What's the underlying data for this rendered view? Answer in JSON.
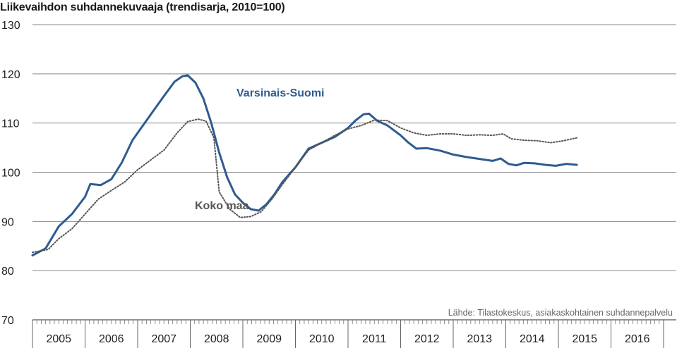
{
  "chart_data": {
    "type": "line",
    "title": "Liikevaihdon suhdannekuvaaja (trendisarja, 2010=100)",
    "source": "Lähde: Tilastokeskus, asiakaskohtainen suhdannepalvelu",
    "ylim": [
      70,
      130
    ],
    "yticks": [
      70,
      80,
      90,
      100,
      110,
      120,
      130
    ],
    "xlim": [
      2005,
      2017
    ],
    "xtick_labels": [
      "2005",
      "2006",
      "2007",
      "2008",
      "2009",
      "2010",
      "2011",
      "2012",
      "2013",
      "2014",
      "2015",
      "2016"
    ],
    "grid": true,
    "series": [
      {
        "name": "Varsinais-Suomi",
        "color": "#2f5c8f",
        "style": "solid",
        "points": [
          [
            2005.0,
            83.1
          ],
          [
            2005.25,
            84.5
          ],
          [
            2005.5,
            89.0
          ],
          [
            2005.75,
            91.5
          ],
          [
            2006.0,
            95.0
          ],
          [
            2006.1,
            97.6
          ],
          [
            2006.3,
            97.4
          ],
          [
            2006.5,
            98.6
          ],
          [
            2006.7,
            102.0
          ],
          [
            2006.9,
            106.5
          ],
          [
            2007.1,
            109.5
          ],
          [
            2007.3,
            112.5
          ],
          [
            2007.5,
            115.5
          ],
          [
            2007.7,
            118.4
          ],
          [
            2007.85,
            119.5
          ],
          [
            2007.95,
            119.7
          ],
          [
            2008.1,
            118.2
          ],
          [
            2008.25,
            115.0
          ],
          [
            2008.4,
            110.0
          ],
          [
            2008.55,
            104.0
          ],
          [
            2008.7,
            99.0
          ],
          [
            2008.85,
            95.5
          ],
          [
            2009.0,
            93.8
          ],
          [
            2009.15,
            92.5
          ],
          [
            2009.3,
            92.2
          ],
          [
            2009.45,
            93.5
          ],
          [
            2009.6,
            95.5
          ],
          [
            2009.75,
            98.0
          ],
          [
            2010.0,
            101.0
          ],
          [
            2010.25,
            104.8
          ],
          [
            2010.5,
            106.0
          ],
          [
            2010.75,
            107.2
          ],
          [
            2011.0,
            109.0
          ],
          [
            2011.15,
            110.6
          ],
          [
            2011.3,
            111.8
          ],
          [
            2011.4,
            111.9
          ],
          [
            2011.55,
            110.5
          ],
          [
            2011.75,
            109.5
          ],
          [
            2012.0,
            107.5
          ],
          [
            2012.15,
            106.0
          ],
          [
            2012.3,
            104.8
          ],
          [
            2012.5,
            104.9
          ],
          [
            2012.75,
            104.4
          ],
          [
            2013.0,
            103.6
          ],
          [
            2013.25,
            103.1
          ],
          [
            2013.5,
            102.7
          ],
          [
            2013.75,
            102.3
          ],
          [
            2013.9,
            102.8
          ],
          [
            2014.05,
            101.7
          ],
          [
            2014.2,
            101.4
          ],
          [
            2014.35,
            101.9
          ],
          [
            2014.55,
            101.8
          ],
          [
            2014.75,
            101.5
          ],
          [
            2014.95,
            101.3
          ],
          [
            2015.15,
            101.7
          ],
          [
            2015.35,
            101.5
          ]
        ]
      },
      {
        "name": "Koko maa",
        "color": "#555555",
        "style": "dotted",
        "points": [
          [
            2005.0,
            83.7
          ],
          [
            2005.3,
            84.3
          ],
          [
            2005.5,
            86.5
          ],
          [
            2005.75,
            88.5
          ],
          [
            2006.0,
            91.5
          ],
          [
            2006.25,
            94.5
          ],
          [
            2006.5,
            96.3
          ],
          [
            2006.75,
            98.0
          ],
          [
            2007.0,
            100.5
          ],
          [
            2007.25,
            102.5
          ],
          [
            2007.5,
            104.5
          ],
          [
            2007.75,
            108.0
          ],
          [
            2007.95,
            110.3
          ],
          [
            2008.15,
            110.8
          ],
          [
            2008.3,
            110.4
          ],
          [
            2008.45,
            107.0
          ],
          [
            2008.55,
            96.0
          ],
          [
            2008.75,
            92.5
          ],
          [
            2008.95,
            90.8
          ],
          [
            2009.15,
            91.0
          ],
          [
            2009.35,
            92.0
          ],
          [
            2009.55,
            94.5
          ],
          [
            2009.75,
            97.5
          ],
          [
            2010.0,
            101.0
          ],
          [
            2010.25,
            104.5
          ],
          [
            2010.5,
            106.0
          ],
          [
            2010.75,
            107.5
          ],
          [
            2011.0,
            108.8
          ],
          [
            2011.25,
            109.5
          ],
          [
            2011.5,
            110.6
          ],
          [
            2011.75,
            110.5
          ],
          [
            2012.0,
            109.0
          ],
          [
            2012.25,
            108.0
          ],
          [
            2012.5,
            107.5
          ],
          [
            2012.75,
            107.8
          ],
          [
            2013.0,
            107.8
          ],
          [
            2013.25,
            107.5
          ],
          [
            2013.5,
            107.6
          ],
          [
            2013.75,
            107.5
          ],
          [
            2013.95,
            107.8
          ],
          [
            2014.1,
            106.8
          ],
          [
            2014.35,
            106.5
          ],
          [
            2014.6,
            106.4
          ],
          [
            2014.85,
            106.0
          ],
          [
            2015.1,
            106.4
          ],
          [
            2015.35,
            107.0
          ]
        ]
      }
    ],
    "annotations": [
      {
        "text": "Varsinais-Suomi",
        "series": 0
      },
      {
        "text": "Koko maa",
        "series": 1
      }
    ]
  }
}
